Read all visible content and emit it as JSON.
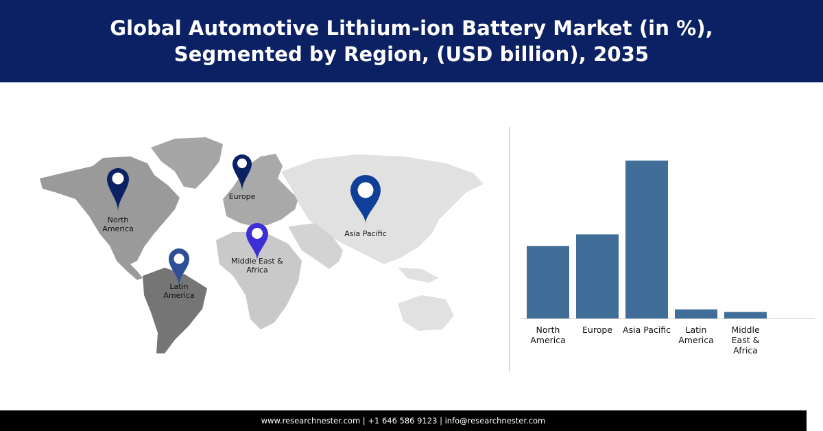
{
  "header": {
    "title_line1": "Global Automotive Lithium-ion Battery Market (in %),",
    "title_line2": "Segmented by Region, (USD billion), 2035"
  },
  "map": {
    "pins": [
      {
        "label": "North\nAmerica",
        "color": "#0b2163",
        "icon": "map-pin-icon"
      },
      {
        "label": "Europe",
        "color": "#0b2163",
        "icon": "map-pin-icon"
      },
      {
        "label": "Asia Pacific",
        "color": "#103f9a",
        "icon": "map-pin-icon"
      },
      {
        "label": "Middle East &\nAfrica",
        "color": "#3c2fd6",
        "icon": "map-pin-icon"
      },
      {
        "label": "Latin\nAmerica",
        "color": "#2e4f96",
        "icon": "map-pin-icon"
      }
    ]
  },
  "chart_data": {
    "type": "bar",
    "categories": [
      "North\nAmerica",
      "Europe",
      "Asia Pacific",
      "Latin\nAmerica",
      "Middle\nEast &\nAfrica"
    ],
    "values": [
      28,
      32.5,
      61,
      3.5,
      2.5
    ],
    "ylim": [
      0,
      70
    ],
    "grid": false,
    "bar_color": "#416e99",
    "title": "",
    "xlabel": "",
    "ylabel": ""
  },
  "footer": {
    "text": "www.researchnester.com | +1 646 586 9123 | info@researchnester.com"
  }
}
